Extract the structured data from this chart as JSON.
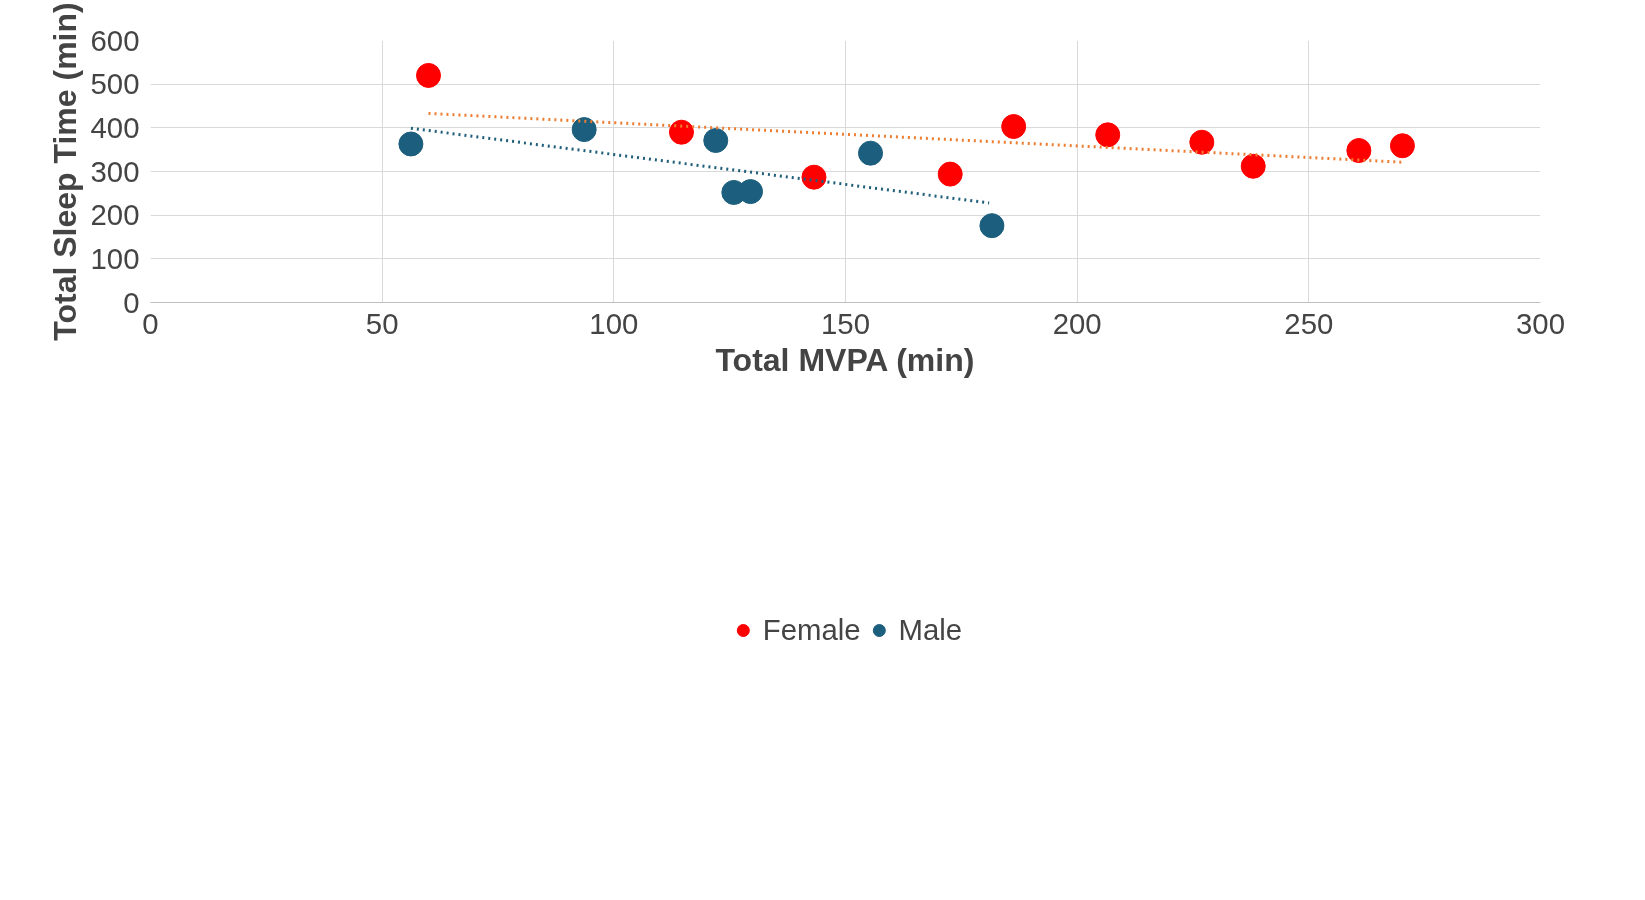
{
  "chart_data": {
    "type": "scatter",
    "xlabel": "Total MVPA (min)",
    "ylabel": "Total Sleep Time (min)",
    "xlim": [
      0,
      300
    ],
    "ylim": [
      0,
      600
    ],
    "xticks": [
      0,
      50,
      100,
      150,
      200,
      250,
      300
    ],
    "yticks": [
      0,
      100,
      200,
      300,
      400,
      500,
      600
    ],
    "grid": true,
    "legend": "bottom",
    "series": [
      {
        "name": "Female",
        "color": "#ff0000",
        "marker": "circle",
        "x": [
          60,
          114.6,
          143.2,
          172.6,
          186.3,
          206.6,
          226.9,
          238,
          260.8,
          270.2
        ],
        "values": [
          520,
          390,
          287,
          294,
          403,
          384,
          367,
          312,
          348,
          359
        ]
      },
      {
        "name": "Male",
        "color": "#1b5e7e",
        "marker": "circle",
        "x": [
          56.2,
          93.6,
          122,
          125.9,
          129.5,
          155.4,
          181.6
        ],
        "values": [
          363,
          396,
          371,
          252,
          254,
          342,
          176
        ]
      },
      {
        "type": "line",
        "line_style": "dotted",
        "color": "#ed7d31",
        "x": [
          60,
          270.7
        ],
        "values": [
          433,
          321
        ]
      },
      {
        "type": "line",
        "line_style": "dotted",
        "color": "#1f5f7a",
        "x": [
          56.2,
          181
        ],
        "values": [
          399,
          228
        ]
      }
    ]
  }
}
